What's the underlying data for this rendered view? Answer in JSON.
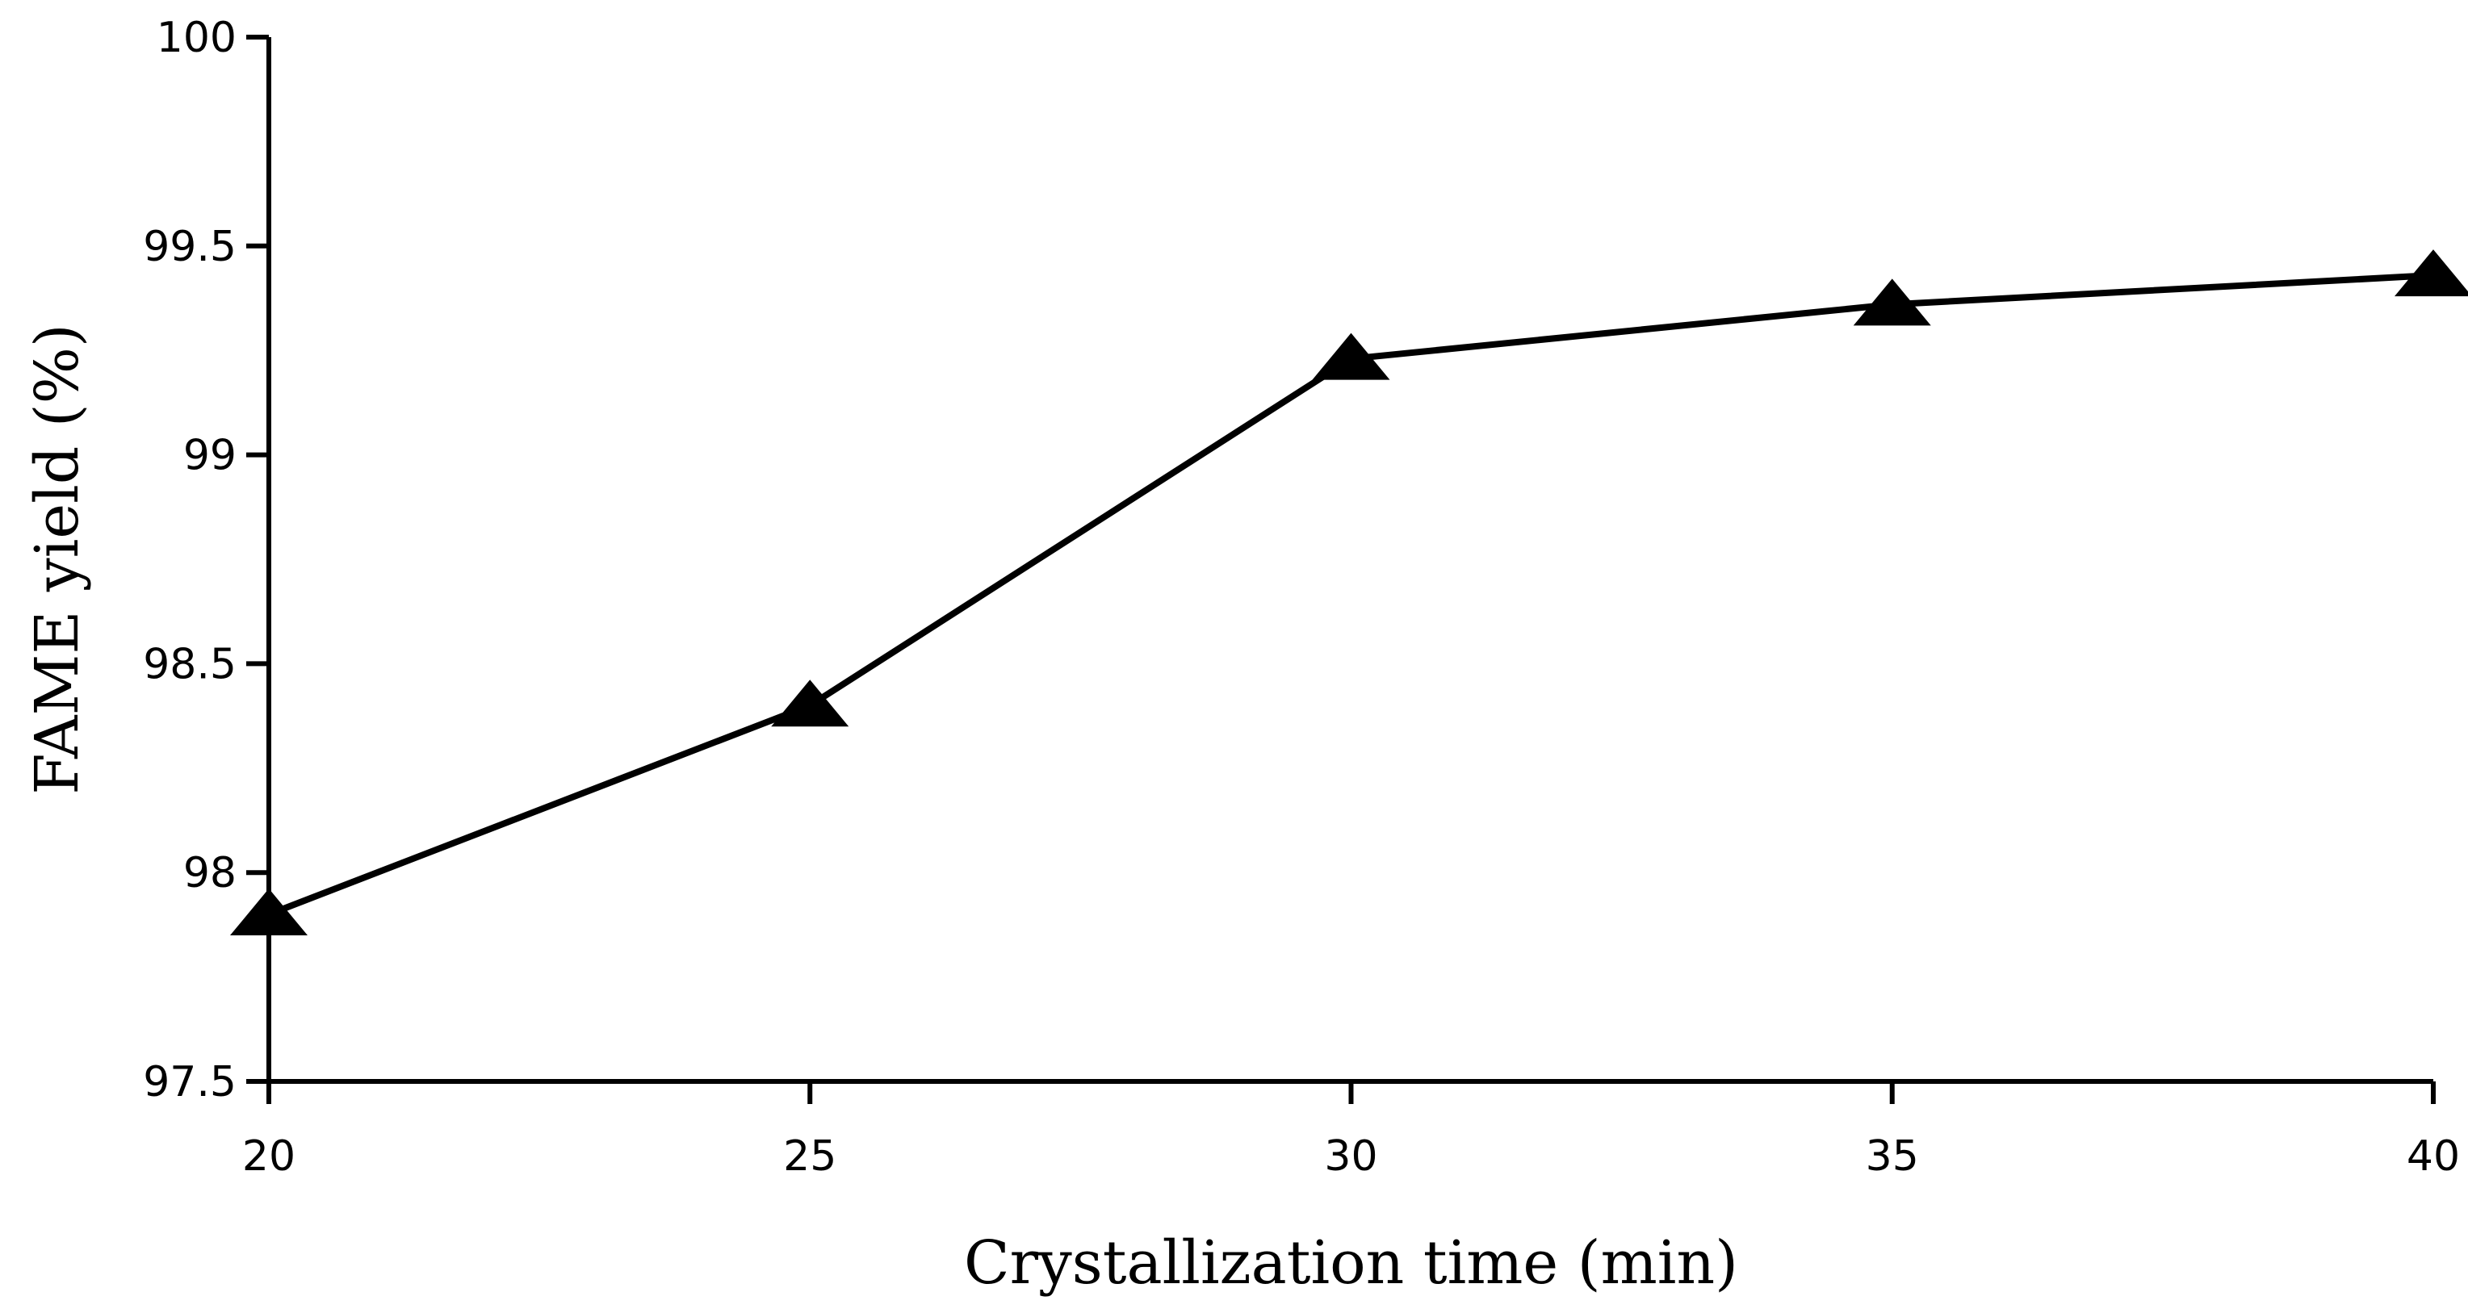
{
  "chart_data": {
    "type": "line",
    "title": "",
    "xlabel": "Crystallization time (min)",
    "ylabel": "FAME yield (%)",
    "x": [
      20,
      25,
      30,
      35,
      40
    ],
    "series": [
      {
        "name": "FAME yield",
        "values": [
          97.9,
          98.4,
          99.23,
          99.36,
          99.43
        ],
        "marker": "triangle"
      }
    ],
    "xlim": [
      20,
      40
    ],
    "ylim": [
      97.5,
      100
    ],
    "xticks": [
      20,
      25,
      30,
      35,
      40
    ],
    "yticks": [
      97.5,
      98,
      98.5,
      99,
      99.5,
      100
    ],
    "ytick_labels": [
      "97.5",
      "98",
      "98.5",
      "99",
      "99.5",
      "100"
    ],
    "xtick_labels": [
      "20",
      "25",
      "30",
      "35",
      "40"
    ],
    "grid": false,
    "legend": "none",
    "line_color": "#000000"
  }
}
